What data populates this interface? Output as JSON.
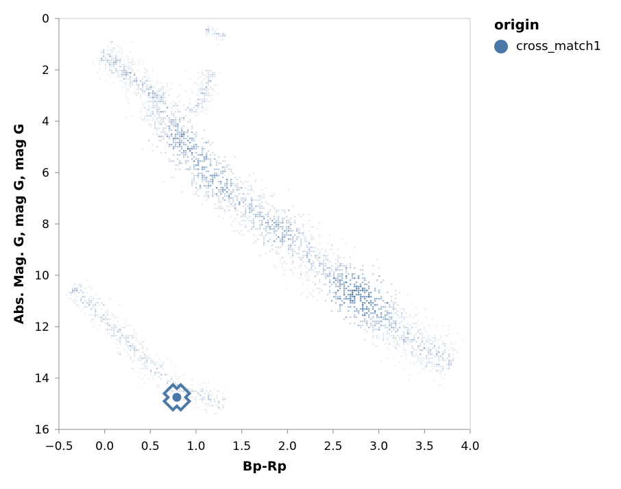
{
  "legend": {
    "title": "origin",
    "entries": [
      {
        "label": "cross_match1",
        "color": "#4c78a8"
      }
    ]
  },
  "chart_data": {
    "type": "scatter",
    "xlabel": "Bp-Rp",
    "ylabel": "Abs. Mag. G, mag G, mag G",
    "xlim": [
      -0.5,
      4.0
    ],
    "ylim": [
      0,
      16
    ],
    "y_reversed": true,
    "grid": false,
    "legend_position": "top-right",
    "x_ticks": [
      "−0.5",
      "0.0",
      "0.5",
      "1.0",
      "1.5",
      "2.0",
      "2.5",
      "3.0",
      "3.5",
      "4.0"
    ],
    "y_ticks": [
      "0",
      "2",
      "4",
      "6",
      "8",
      "10",
      "12",
      "14",
      "16"
    ],
    "series": [
      {
        "name": "cross_match1",
        "color": "#4c78a8",
        "x": [
          0.79
        ],
        "y": [
          14.75
        ],
        "highlighted": true
      }
    ],
    "background_density": {
      "description_color": "#4c78a8",
      "regions": [
        {
          "name": "main-sequence",
          "centerline": [
            [
              0.5,
              3.0
            ],
            [
              0.6,
              3.4
            ],
            [
              0.75,
              4.2
            ],
            [
              0.85,
              4.9
            ],
            [
              1.0,
              5.5
            ],
            [
              1.2,
              6.2
            ],
            [
              1.5,
              7.1
            ],
            [
              1.8,
              7.9
            ],
            [
              2.1,
              8.8
            ],
            [
              2.4,
              9.8
            ],
            [
              2.6,
              10.3
            ],
            [
              2.8,
              10.9
            ],
            [
              3.0,
              11.5
            ],
            [
              3.2,
              12.1
            ],
            [
              3.5,
              12.8
            ],
            [
              3.8,
              13.4
            ]
          ],
          "peaks": [
            [
              0.85,
              4.9,
              0.7
            ],
            [
              1.2,
              6.2,
              0.55
            ],
            [
              1.9,
              8.2,
              0.6
            ],
            [
              2.7,
              10.6,
              1.0
            ],
            [
              2.9,
              11.0,
              0.8
            ]
          ]
        },
        {
          "name": "subgiant-branch",
          "centerline": [
            [
              -0.05,
              1.3
            ],
            [
              0.2,
              2.0
            ],
            [
              0.45,
              2.7
            ],
            [
              0.6,
              3.2
            ]
          ],
          "peaks": []
        },
        {
          "name": "giant-branch",
          "centerline": [
            [
              0.95,
              3.6
            ],
            [
              1.05,
              3.2
            ],
            [
              1.12,
              2.6
            ],
            [
              1.15,
              2.0
            ]
          ],
          "peaks": []
        },
        {
          "name": "upper-clump",
          "centerline": [
            [
              1.1,
              0.4
            ],
            [
              1.2,
              0.5
            ],
            [
              1.3,
              0.7
            ]
          ],
          "peaks": []
        },
        {
          "name": "white-dwarf-sequence",
          "centerline": [
            [
              -0.35,
              10.4
            ],
            [
              -0.1,
              11.3
            ],
            [
              0.2,
              12.4
            ],
            [
              0.5,
              13.5
            ],
            [
              0.8,
              14.4
            ],
            [
              1.1,
              14.7
            ],
            [
              1.3,
              15.0
            ]
          ],
          "peaks": []
        }
      ]
    }
  }
}
